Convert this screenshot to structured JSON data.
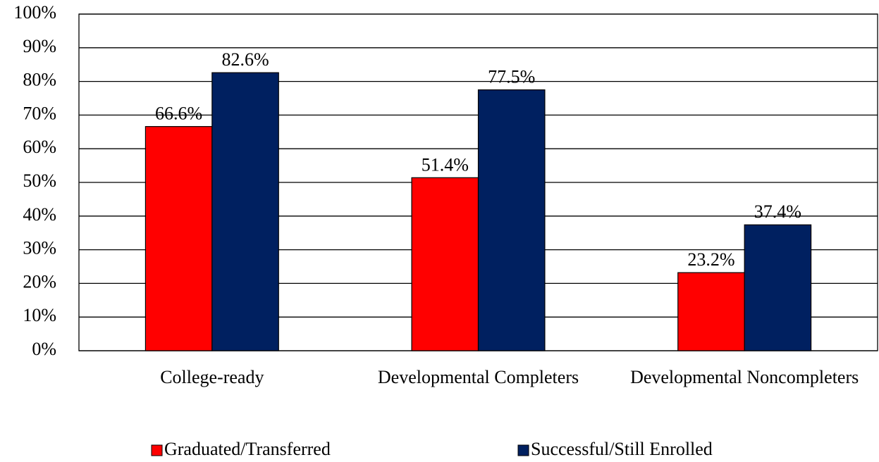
{
  "chart_data": {
    "type": "bar",
    "categories": [
      "College-ready",
      "Developmental Completers",
      "Developmental Noncompleters"
    ],
    "series": [
      {
        "name": "Graduated/Transferred",
        "color": "#ff0000",
        "values": [
          66.6,
          51.4,
          23.2
        ],
        "value_labels": [
          "66.6%",
          "51.4%",
          "23.2%"
        ]
      },
      {
        "name": "Successful/Still Enrolled",
        "color": "#002060",
        "values": [
          82.6,
          77.5,
          37.4
        ],
        "value_labels": [
          "82.6%",
          "77.5%",
          "37.4%"
        ]
      }
    ],
    "ylim": [
      0,
      100
    ],
    "yticks": [
      {
        "value": 0,
        "label": "0%"
      },
      {
        "value": 10,
        "label": "10%"
      },
      {
        "value": 20,
        "label": "20%"
      },
      {
        "value": 30,
        "label": "30%"
      },
      {
        "value": 40,
        "label": "40%"
      },
      {
        "value": 50,
        "label": "50%"
      },
      {
        "value": 60,
        "label": "60%"
      },
      {
        "value": 70,
        "label": "70%"
      },
      {
        "value": 80,
        "label": "80%"
      },
      {
        "value": 90,
        "label": "90%"
      },
      {
        "value": 100,
        "label": "100%"
      }
    ],
    "grid": true,
    "legend": "bottom"
  }
}
